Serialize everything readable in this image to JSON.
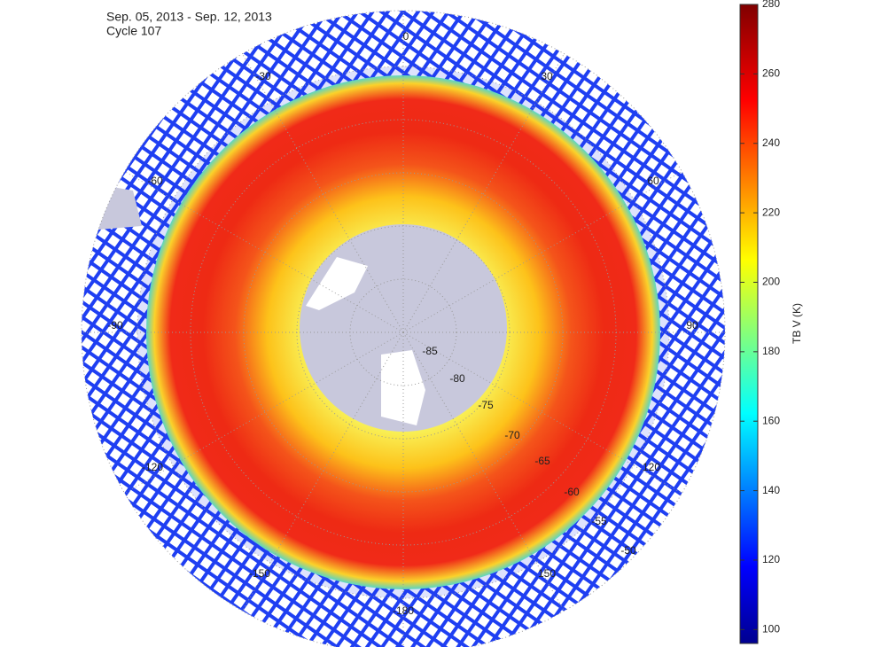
{
  "map": {
    "title": [
      "Sep. 05, 2013 - Sep. 12, 2013",
      "Cycle 107"
    ],
    "longitude_labels": [
      "0",
      "-30",
      "30",
      "-60",
      "60",
      "-90",
      "90",
      "-120",
      "120",
      "-150",
      "150",
      "-180"
    ],
    "latitude_labels": [
      "-85",
      "-80",
      "-75",
      "-70",
      "-65",
      "-60",
      "-55",
      "-50"
    ],
    "colorbar": {
      "label": "TB V (K)",
      "lim": [
        96,
        280
      ],
      "ticks": [
        100,
        120,
        140,
        160,
        180,
        200,
        220,
        240,
        260,
        280
      ]
    }
  }
}
